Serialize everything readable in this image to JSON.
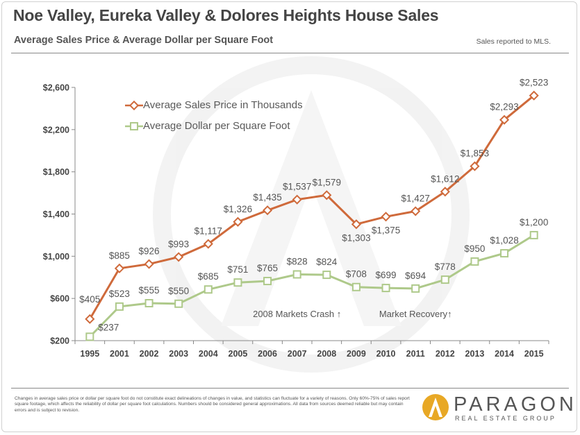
{
  "title": "Noe Valley, Eureka Valley & Dolores Heights House Sales",
  "subtitle": "Average Sales Price & Average Dollar per Square Foot",
  "note": "Sales reported to MLS.",
  "disclaimer": "Changes in average sales price or dollar per square foot do not constitute exact delineations of changes in value, and statistics can fluctuate for a variety of reasons. Only 60%-75% of sales report square footage, which affects the reliability of dollar per square foot calculations. Numbers should be considered general approximations.  All data from sources deemed reliable but may contain errors and is subject to revision.",
  "logo": {
    "name": "PARAGON",
    "tagline": "REAL ESTATE GROUP"
  },
  "colors": {
    "price": "#cf6a3b",
    "sqft": "#aec98a",
    "axis": "#888888"
  },
  "chart_data": {
    "type": "line",
    "categories": [
      "1995",
      "2001",
      "2002",
      "2003",
      "2004",
      "2005",
      "2006",
      "2007",
      "2008",
      "2009",
      "2010",
      "2011",
      "2012",
      "2013",
      "2014",
      "2015"
    ],
    "series": [
      {
        "name": "Average Sales Price in Thousands",
        "values": [
          405,
          885,
          926,
          993,
          1117,
          1326,
          1435,
          1537,
          1579,
          1303,
          1375,
          1427,
          1612,
          1853,
          2293,
          2523
        ]
      },
      {
        "name": "Average Dollar per Square Foot",
        "values": [
          237,
          523,
          555,
          550,
          685,
          751,
          765,
          828,
          824,
          708,
          699,
          694,
          778,
          950,
          1028,
          1200
        ]
      }
    ],
    "data_labels": {
      "price": [
        "$405",
        "$885",
        "$926",
        "$993",
        "$1,117",
        "$1,326",
        "$1,435",
        "$1,537",
        "$1,579",
        "$1,303",
        "$1,375",
        "$1,427",
        "$1,612",
        "$1,853",
        "$2,293",
        "$2,523"
      ],
      "sqft": [
        "$237",
        "$523",
        "$555",
        "$550",
        "$685",
        "$751",
        "$765",
        "$828",
        "$824",
        "$708",
        "$699",
        "$694",
        "$778",
        "$950",
        "$1,028",
        "$1,200"
      ]
    },
    "yticks": [
      200,
      600,
      1000,
      1400,
      1800,
      2200,
      2600
    ],
    "ytick_labels": [
      "$200",
      "$600",
      "$1,000",
      "$1,400",
      "$1,800",
      "$2,200",
      "$2,600"
    ],
    "ylim": [
      200,
      2600
    ],
    "annotations": [
      {
        "text": "2008 Markets Crash ↑",
        "x": "2007",
        "y": 450
      },
      {
        "text": "Market Recovery↑",
        "x": "2011",
        "y": 450
      }
    ],
    "legend_position": "top-left",
    "grid": false
  }
}
